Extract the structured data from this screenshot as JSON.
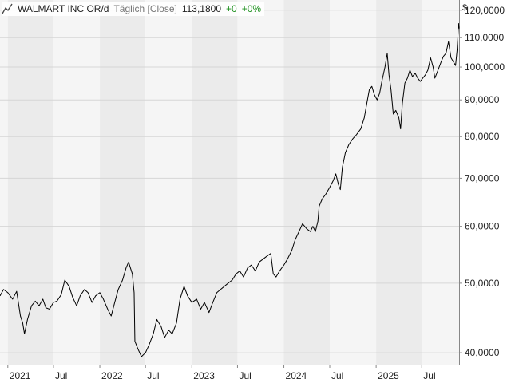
{
  "legend": {
    "symbol": "WALMART INC OR/d",
    "interval": "Täglich [Close]",
    "last": "113,1800",
    "change_abs": "+0",
    "change_pct": "+0%",
    "change_color": "#1a8f1a"
  },
  "currency_label": "$",
  "chart_data": {
    "type": "line",
    "title": "WALMART INC OR/d",
    "scale": "log",
    "grid": true,
    "ylim": [
      38500,
      124000
    ],
    "xlim": [
      "2020-12-01",
      "2025-11-26"
    ],
    "y_ticks": [
      {
        "value": 40000,
        "label": "40,0000"
      },
      {
        "value": 50000,
        "label": "50,0000"
      },
      {
        "value": 60000,
        "label": "60,0000"
      },
      {
        "value": 70000,
        "label": "70,0000"
      },
      {
        "value": 80000,
        "label": "80,0000"
      },
      {
        "value": 90000,
        "label": "90,0000"
      },
      {
        "value": 100000,
        "label": "100,0000"
      },
      {
        "value": 110000,
        "label": "110,0000"
      },
      {
        "value": 120000,
        "label": "120,0000"
      }
    ],
    "x_ticks": [
      {
        "date": "2021-01-01",
        "label": "2021"
      },
      {
        "date": "2021-07-01",
        "label": "Jul"
      },
      {
        "date": "2022-01-01",
        "label": "2022"
      },
      {
        "date": "2022-07-01",
        "label": "Jul"
      },
      {
        "date": "2023-01-01",
        "label": "2023"
      },
      {
        "date": "2023-07-01",
        "label": "Jul"
      },
      {
        "date": "2024-01-01",
        "label": "2024"
      },
      {
        "date": "2024-07-01",
        "label": "Jul"
      },
      {
        "date": "2025-01-01",
        "label": "2025"
      },
      {
        "date": "2025-07-01",
        "label": "Jul"
      }
    ],
    "series": [
      {
        "color": "#000000",
        "points": [
          [
            "2020-12-01",
            48000
          ],
          [
            "2020-12-15",
            49000
          ],
          [
            "2021-01-01",
            48500
          ],
          [
            "2021-01-20",
            47500
          ],
          [
            "2021-02-05",
            48700
          ],
          [
            "2021-02-20",
            45000
          ],
          [
            "2021-03-01",
            44000
          ],
          [
            "2021-03-08",
            42500
          ],
          [
            "2021-03-20",
            44500
          ],
          [
            "2021-04-05",
            46500
          ],
          [
            "2021-04-20",
            47200
          ],
          [
            "2021-05-05",
            46500
          ],
          [
            "2021-05-20",
            47500
          ],
          [
            "2021-06-01",
            46200
          ],
          [
            "2021-06-15",
            46000
          ],
          [
            "2021-07-01",
            47000
          ],
          [
            "2021-07-15",
            47200
          ],
          [
            "2021-08-01",
            48200
          ],
          [
            "2021-08-15",
            50500
          ],
          [
            "2021-09-01",
            49500
          ],
          [
            "2021-09-15",
            47800
          ],
          [
            "2021-10-01",
            46500
          ],
          [
            "2021-10-15",
            48000
          ],
          [
            "2021-11-01",
            49000
          ],
          [
            "2021-11-15",
            48500
          ],
          [
            "2021-12-01",
            47000
          ],
          [
            "2021-12-15",
            48000
          ],
          [
            "2022-01-01",
            48500
          ],
          [
            "2022-01-15",
            47500
          ],
          [
            "2022-02-01",
            46000
          ],
          [
            "2022-02-15",
            45000
          ],
          [
            "2022-03-01",
            47000
          ],
          [
            "2022-03-15",
            49000
          ],
          [
            "2022-04-01",
            50500
          ],
          [
            "2022-04-15",
            52500
          ],
          [
            "2022-04-25",
            53500
          ],
          [
            "2022-05-10",
            51500
          ],
          [
            "2022-05-17",
            48500
          ],
          [
            "2022-05-20",
            41500
          ],
          [
            "2022-06-01",
            40500
          ],
          [
            "2022-06-15",
            39500
          ],
          [
            "2022-07-01",
            40000
          ],
          [
            "2022-07-15",
            41000
          ],
          [
            "2022-08-01",
            42500
          ],
          [
            "2022-08-15",
            44500
          ],
          [
            "2022-09-01",
            43500
          ],
          [
            "2022-09-15",
            42000
          ],
          [
            "2022-10-01",
            43000
          ],
          [
            "2022-10-15",
            42500
          ],
          [
            "2022-11-01",
            44000
          ],
          [
            "2022-11-15",
            47500
          ],
          [
            "2022-12-01",
            49500
          ],
          [
            "2022-12-15",
            48000
          ],
          [
            "2023-01-01",
            47000
          ],
          [
            "2023-01-20",
            47500
          ],
          [
            "2023-02-05",
            46000
          ],
          [
            "2023-02-20",
            47000
          ],
          [
            "2023-03-10",
            45500
          ],
          [
            "2023-03-25",
            47000
          ],
          [
            "2023-04-10",
            48500
          ],
          [
            "2023-04-25",
            49000
          ],
          [
            "2023-05-10",
            49500
          ],
          [
            "2023-05-25",
            50000
          ],
          [
            "2023-06-10",
            50500
          ],
          [
            "2023-06-25",
            51500
          ],
          [
            "2023-07-10",
            52000
          ],
          [
            "2023-07-25",
            51000
          ],
          [
            "2023-08-10",
            52500
          ],
          [
            "2023-08-25",
            53000
          ],
          [
            "2023-09-10",
            52000
          ],
          [
            "2023-09-25",
            53500
          ],
          [
            "2023-10-10",
            54000
          ],
          [
            "2023-10-25",
            54500
          ],
          [
            "2023-11-10",
            55000
          ],
          [
            "2023-11-20",
            51500
          ],
          [
            "2023-12-01",
            51000
          ],
          [
            "2023-12-15",
            52000
          ],
          [
            "2024-01-01",
            53000
          ],
          [
            "2024-01-15",
            54000
          ],
          [
            "2024-02-01",
            55500
          ],
          [
            "2024-02-15",
            57500
          ],
          [
            "2024-03-01",
            59000
          ],
          [
            "2024-03-15",
            60500
          ],
          [
            "2024-04-01",
            59500
          ],
          [
            "2024-04-15",
            59000
          ],
          [
            "2024-04-25",
            60000
          ],
          [
            "2024-05-05",
            59000
          ],
          [
            "2024-05-15",
            61000
          ],
          [
            "2024-05-20",
            64000
          ],
          [
            "2024-06-01",
            65500
          ],
          [
            "2024-06-15",
            66500
          ],
          [
            "2024-07-01",
            68000
          ],
          [
            "2024-07-15",
            69500
          ],
          [
            "2024-07-25",
            71000
          ],
          [
            "2024-08-05",
            68500
          ],
          [
            "2024-08-12",
            67500
          ],
          [
            "2024-08-20",
            72500
          ],
          [
            "2024-09-01",
            76000
          ],
          [
            "2024-09-15",
            78000
          ],
          [
            "2024-10-01",
            79500
          ],
          [
            "2024-10-15",
            80500
          ],
          [
            "2024-11-01",
            82000
          ],
          [
            "2024-11-15",
            85000
          ],
          [
            "2024-11-25",
            89000
          ],
          [
            "2024-12-05",
            93000
          ],
          [
            "2024-12-15",
            94000
          ],
          [
            "2024-12-25",
            91500
          ],
          [
            "2025-01-05",
            90000
          ],
          [
            "2025-01-15",
            92000
          ],
          [
            "2025-01-25",
            96000
          ],
          [
            "2025-02-05",
            100000
          ],
          [
            "2025-02-14",
            104500
          ],
          [
            "2025-02-21",
            97500
          ],
          [
            "2025-03-01",
            93000
          ],
          [
            "2025-03-10",
            86000
          ],
          [
            "2025-03-20",
            87000
          ],
          [
            "2025-04-01",
            85000
          ],
          [
            "2025-04-08",
            82000
          ],
          [
            "2025-04-15",
            89000
          ],
          [
            "2025-04-25",
            95000
          ],
          [
            "2025-05-05",
            96500
          ],
          [
            "2025-05-15",
            99000
          ],
          [
            "2025-05-25",
            97000
          ],
          [
            "2025-06-05",
            98000
          ],
          [
            "2025-06-15",
            96500
          ],
          [
            "2025-06-25",
            95500
          ],
          [
            "2025-07-05",
            96500
          ],
          [
            "2025-07-15",
            97500
          ],
          [
            "2025-07-25",
            99000
          ],
          [
            "2025-08-05",
            103000
          ],
          [
            "2025-08-15",
            100000
          ],
          [
            "2025-08-22",
            96500
          ],
          [
            "2025-09-01",
            98500
          ],
          [
            "2025-09-15",
            101500
          ],
          [
            "2025-09-25",
            103500
          ],
          [
            "2025-10-05",
            104500
          ],
          [
            "2025-10-15",
            108500
          ],
          [
            "2025-10-25",
            103000
          ],
          [
            "2025-11-05",
            101500
          ],
          [
            "2025-11-12",
            100500
          ],
          [
            "2025-11-18",
            105500
          ],
          [
            "2025-11-21",
            110000
          ],
          [
            "2025-11-24",
            115000
          ],
          [
            "2025-11-26",
            113180
          ]
        ]
      }
    ]
  },
  "colors": {
    "grid": "#d6d6d6",
    "band_dark": "#ebebeb",
    "band_light": "#f5f5f5",
    "line": "#000000",
    "axis_text": "#222222"
  }
}
